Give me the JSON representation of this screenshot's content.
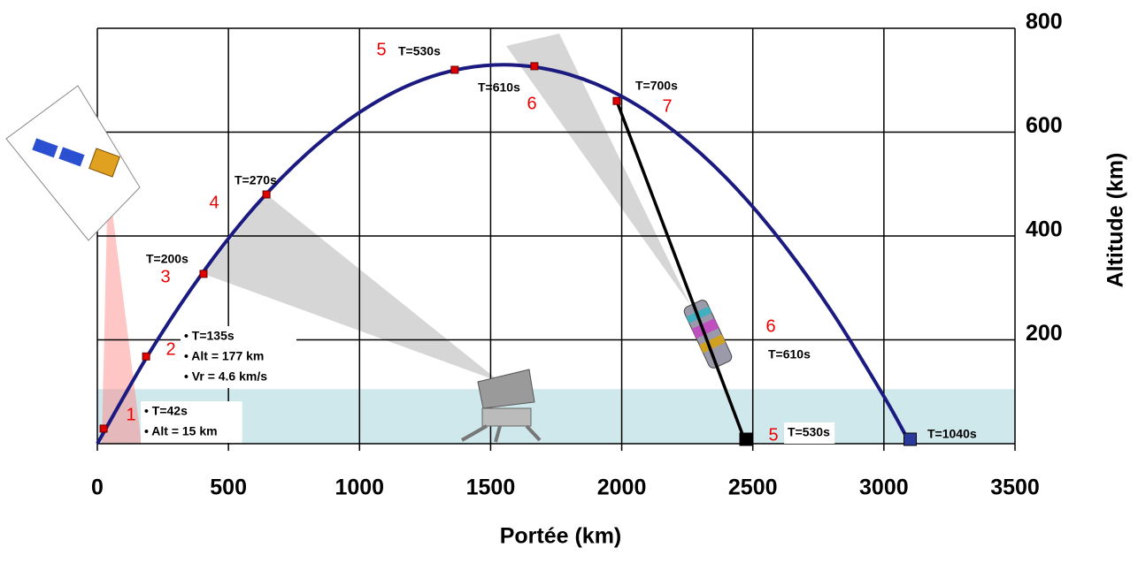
{
  "chart_data": {
    "type": "line",
    "x_label": "Portée (km)",
    "y_label": "Altitude (km)",
    "xlim": [
      0,
      3500
    ],
    "ylim": [
      0,
      800
    ],
    "xticks": [
      0,
      500,
      1000,
      1500,
      2000,
      2500,
      3000,
      3500
    ],
    "yticks": [
      200,
      400,
      600,
      800
    ],
    "grid": true,
    "shaded_band": [
      0,
      105
    ],
    "series": [
      {
        "color": "#1a1a80",
        "x": [
          0,
          200,
          400,
          600,
          800,
          1000,
          1200,
          1400,
          1600,
          1800,
          2000,
          2200,
          2400,
          2600,
          2800,
          3000,
          3100
        ],
        "values": [
          0,
          176,
          328,
          456,
          559,
          638,
          693,
          723,
          729,
          711,
          669,
          602,
          511,
          395,
          255,
          91,
          0
        ]
      },
      {
        "color": "#000000",
        "x": [
          1981,
          2474
        ],
        "values": [
          660,
          0
        ]
      }
    ],
    "events": {
      "color": "#e00000",
      "x": [
        24,
        186,
        405,
        645,
        1363,
        1667,
        1981
      ],
      "values": [
        29,
        168,
        327,
        480,
        720,
        727,
        660
      ]
    },
    "impacts": {
      "colors": [
        "#000000",
        "#2a3a9a"
      ],
      "x": [
        2474,
        3100
      ],
      "values": [
        0,
        0
      ]
    },
    "annotations": [
      {
        "number": "1",
        "lines": [
          "• T=42s",
          "• Alt = 15 km"
        ]
      },
      {
        "number": "2",
        "lines": [
          "• T=135s",
          "• Alt = 177 km",
          "• Vr = 4.6 km/s"
        ]
      },
      {
        "number": "3",
        "lines": [
          "T=200s"
        ]
      },
      {
        "number": "4",
        "lines": [
          "T=270s"
        ]
      },
      {
        "number": "5",
        "lines": [
          "T=530s"
        ]
      },
      {
        "number": "6",
        "lines": [
          "T=610s"
        ]
      },
      {
        "number": "7",
        "lines": [
          "T=700s"
        ]
      },
      {
        "number": "6",
        "lines": [
          "T=610s"
        ]
      },
      {
        "number": "5",
        "lines": [
          "T=530s"
        ]
      },
      {
        "lines": [
          "T=1040s"
        ]
      }
    ]
  }
}
